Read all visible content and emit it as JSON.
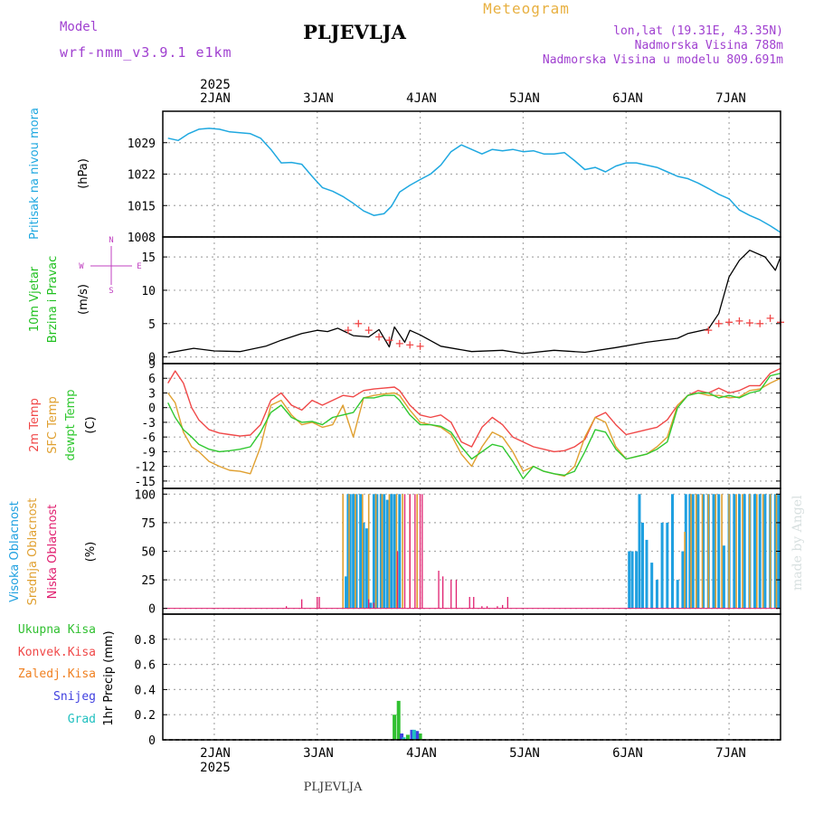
{
  "header": {
    "model_label": "Model",
    "model_name": "wrf-nmm_v3.9.1 e1km",
    "station": "PLJEVLJA",
    "product": "Meteogram",
    "coords": "lon,lat (19.31E, 43.35N)",
    "elevation": "Nadmorska Visina 788m",
    "model_elevation": "Nadmorska Visina u modelu 809.691m",
    "footer_station": "PLJEVLJA",
    "watermark": "made by Angel"
  },
  "colors": {
    "pressure": "#1fa8e0",
    "temp2m": "#f04848",
    "sfc_temp": "#e0a030",
    "dewpoint": "#30c830",
    "high_cloud": "#1fa0e0",
    "mid_cloud": "#e0a030",
    "low_cloud": "#e02070",
    "total_precip": "#30c030",
    "conv_precip": "#f04848",
    "frozen": "#f08020",
    "snow": "#4040e0",
    "graupel": "#20c0c0",
    "model_text": "#a040d0",
    "product_text": "#e8b040",
    "wind_label": "#20c020",
    "wind_compass": "#c040c0"
  },
  "chart_data": [
    {
      "panel": "pressure",
      "type": "line",
      "ylabel_side": "Pritisak na nivou mora",
      "ylabel_unit": "(hPa)",
      "ylim": [
        1008,
        1036
      ],
      "yticks": [
        1008,
        1015,
        1022,
        1029
      ],
      "x_top_year": "2025",
      "x_ticks": [
        "2JAN",
        "3JAN",
        "4JAN",
        "5JAN",
        "6JAN",
        "7JAN"
      ],
      "x": [
        1.55,
        1.65,
        1.75,
        1.85,
        1.95,
        2.05,
        2.15,
        2.25,
        2.35,
        2.45,
        2.55,
        2.65,
        2.75,
        2.85,
        2.95,
        3.05,
        3.15,
        3.25,
        3.35,
        3.45,
        3.55,
        3.65,
        3.72,
        3.8,
        3.9,
        4.0,
        4.1,
        4.2,
        4.3,
        4.4,
        4.5,
        4.6,
        4.7,
        4.8,
        4.9,
        5.0,
        5.1,
        5.2,
        5.3,
        5.4,
        5.5,
        5.6,
        5.7,
        5.8,
        5.9,
        6.0,
        6.1,
        6.2,
        6.3,
        6.4,
        6.5,
        6.6,
        6.7,
        6.8,
        6.9,
        7.0,
        7.1,
        7.2,
        7.3,
        7.4,
        7.5
      ],
      "values": [
        1030.0,
        1029.5,
        1031.0,
        1032.0,
        1032.2,
        1032.0,
        1031.4,
        1031.2,
        1031.0,
        1030.0,
        1027.5,
        1024.5,
        1024.6,
        1024.2,
        1021.5,
        1019.0,
        1018.2,
        1017.0,
        1015.5,
        1013.8,
        1012.8,
        1013.2,
        1014.8,
        1018.0,
        1019.5,
        1020.8,
        1022.0,
        1024.0,
        1027.0,
        1028.5,
        1027.5,
        1026.5,
        1027.5,
        1027.2,
        1027.5,
        1027.0,
        1027.2,
        1026.5,
        1026.5,
        1026.8,
        1025.0,
        1023.0,
        1023.5,
        1022.5,
        1023.8,
        1024.5,
        1024.5,
        1024.0,
        1023.5,
        1022.5,
        1021.5,
        1021.0,
        1020.0,
        1018.8,
        1017.5,
        1016.5,
        1014.0,
        1012.8,
        1011.8,
        1010.5,
        1009.0
      ]
    },
    {
      "panel": "wind",
      "type": "line",
      "ylabel_side": [
        "10m Vjetar",
        "Brzina i Pravac"
      ],
      "ylabel_unit": "(m/s)",
      "compass": [
        "N",
        "E",
        "S",
        "W"
      ],
      "ylim": [
        -1,
        18
      ],
      "yticks": [
        0,
        5,
        10,
        15
      ],
      "speed_x": [
        1.55,
        1.8,
        2.0,
        2.25,
        2.5,
        2.65,
        2.85,
        3.0,
        3.1,
        3.2,
        3.35,
        3.5,
        3.6,
        3.7,
        3.75,
        3.85,
        3.9,
        4.0,
        4.2,
        4.5,
        4.8,
        5.0,
        5.3,
        5.6,
        5.9,
        6.2,
        6.5,
        6.6,
        6.8,
        6.9,
        7.0,
        7.1,
        7.2,
        7.35,
        7.45,
        7.5
      ],
      "speed_values": [
        0.6,
        1.3,
        0.9,
        0.8,
        1.6,
        2.5,
        3.5,
        4.0,
        3.8,
        4.3,
        3.2,
        3.0,
        4.1,
        1.5,
        4.5,
        2.2,
        4.0,
        3.3,
        1.6,
        0.8,
        1.0,
        0.5,
        1.0,
        0.7,
        1.4,
        2.2,
        2.8,
        3.5,
        4.2,
        6.5,
        12.0,
        14.5,
        16.0,
        15.0,
        13.0,
        15.0
      ],
      "gust_x": [
        3.3,
        3.4,
        3.5,
        3.6,
        3.7,
        3.8,
        3.9,
        4.0,
        6.8,
        6.9,
        7.0,
        7.1,
        7.2,
        7.3,
        7.4,
        7.5
      ],
      "gust_values": [
        4.0,
        5.0,
        4.0,
        3.0,
        2.5,
        2.0,
        1.8,
        1.6,
        4.0,
        5.0,
        5.2,
        5.4,
        5.1,
        5.0,
        5.8,
        5.2
      ]
    },
    {
      "panel": "temperature",
      "type": "line",
      "ylabel_side": [
        "2m Temp",
        "SFC Temp",
        "dewpt Temp"
      ],
      "ylabel_unit": "(C)",
      "ylim": [
        -16.5,
        9
      ],
      "yticks": [
        -15,
        -12,
        -9,
        -6,
        -3,
        0,
        3,
        6,
        9
      ],
      "x": [
        1.55,
        1.62,
        1.7,
        1.78,
        1.85,
        1.95,
        2.05,
        2.15,
        2.25,
        2.35,
        2.45,
        2.55,
        2.65,
        2.75,
        2.85,
        2.95,
        3.05,
        3.15,
        3.25,
        3.35,
        3.45,
        3.55,
        3.65,
        3.75,
        3.8,
        3.85,
        3.9,
        4.0,
        4.1,
        4.2,
        4.3,
        4.4,
        4.5,
        4.6,
        4.7,
        4.8,
        4.9,
        5.0,
        5.1,
        5.2,
        5.3,
        5.4,
        5.5,
        5.6,
        5.7,
        5.8,
        5.9,
        6.0,
        6.1,
        6.2,
        6.3,
        6.4,
        6.5,
        6.6,
        6.7,
        6.8,
        6.9,
        7.0,
        7.1,
        7.2,
        7.3,
        7.4,
        7.5
      ],
      "series": [
        {
          "name": "2m Temp",
          "values": [
            5.0,
            7.5,
            5.0,
            0.0,
            -2.5,
            -4.5,
            -5.2,
            -5.5,
            -5.8,
            -5.6,
            -3.5,
            1.5,
            3.0,
            0.5,
            -0.5,
            1.5,
            0.5,
            1.5,
            2.5,
            2.2,
            3.5,
            3.8,
            4.0,
            4.2,
            3.5,
            2.0,
            0.5,
            -1.5,
            -2.0,
            -1.5,
            -3.0,
            -7.0,
            -8.0,
            -4.0,
            -2.0,
            -3.5,
            -6.0,
            -7.0,
            -8.0,
            -8.5,
            -9.0,
            -8.8,
            -8.0,
            -6.5,
            -2.0,
            -1.0,
            -3.5,
            -5.5,
            -5.0,
            -4.5,
            -4.0,
            -2.5,
            0.5,
            2.5,
            3.5,
            3.0,
            4.0,
            3.0,
            3.5,
            4.5,
            4.5,
            7.0,
            8.0
          ]
        },
        {
          "name": "SFC Temp",
          "values": [
            3.0,
            1.0,
            -5.0,
            -8.0,
            -9.0,
            -11.0,
            -12.0,
            -12.8,
            -13.0,
            -13.5,
            -8.0,
            0.5,
            1.5,
            -1.5,
            -3.5,
            -3.0,
            -4.0,
            -3.5,
            0.5,
            -6.0,
            2.0,
            2.5,
            2.8,
            3.0,
            2.5,
            1.0,
            -0.5,
            -3.0,
            -3.5,
            -4.0,
            -5.5,
            -9.5,
            -12.0,
            -8.0,
            -5.0,
            -6.0,
            -9.0,
            -13.0,
            -12.0,
            -13.0,
            -13.5,
            -14.0,
            -12.0,
            -6.0,
            -2.0,
            -3.0,
            -8.0,
            -10.5,
            -10.0,
            -9.5,
            -8.0,
            -6.0,
            0.5,
            2.5,
            3.0,
            2.5,
            2.5,
            2.0,
            2.2,
            3.5,
            3.8,
            5.0,
            6.0
          ]
        },
        {
          "name": "dewpt Temp",
          "values": [
            1.0,
            -2.0,
            -4.5,
            -6.0,
            -7.5,
            -8.5,
            -9.0,
            -8.8,
            -8.5,
            -8.0,
            -5.0,
            -1.0,
            0.5,
            -2.0,
            -3.0,
            -2.8,
            -3.5,
            -2.0,
            -1.5,
            -1.0,
            2.0,
            2.0,
            2.5,
            2.5,
            1.5,
            0.0,
            -1.5,
            -3.5,
            -3.5,
            -3.8,
            -5.0,
            -8.0,
            -10.5,
            -9.0,
            -7.5,
            -8.0,
            -11.0,
            -14.5,
            -12.0,
            -13.0,
            -13.5,
            -13.8,
            -13.0,
            -9.0,
            -4.5,
            -5.0,
            -8.5,
            -10.5,
            -10.0,
            -9.5,
            -8.5,
            -7.0,
            0.0,
            2.5,
            3.0,
            3.0,
            2.0,
            2.5,
            2.0,
            3.0,
            3.5,
            6.5,
            7.0
          ]
        }
      ]
    },
    {
      "panel": "cloud",
      "type": "bar",
      "ylabel_side": [
        "Visoka Oblacnost",
        "Srednja Oblacnost",
        "Niska Oblacnost"
      ],
      "ylabel_unit": "(%)",
      "ylim": [
        -5,
        105
      ],
      "yticks": [
        0,
        25,
        50,
        75,
        100
      ],
      "series": [
        {
          "name": "Visoka Oblacnost",
          "x": [
            3.28,
            3.3,
            3.32,
            3.35,
            3.38,
            3.42,
            3.45,
            3.48,
            3.52,
            3.55,
            3.58,
            3.62,
            3.65,
            3.68,
            3.72,
            3.75,
            3.8,
            6.03,
            6.06,
            6.1,
            6.13,
            6.16,
            6.2,
            6.25,
            6.3,
            6.35,
            6.4,
            6.45,
            6.5,
            6.55,
            6.58,
            6.62,
            6.65,
            6.7,
            6.75,
            6.8,
            6.85,
            6.9,
            6.95,
            7.0,
            7.05,
            7.1,
            7.15,
            7.2,
            7.25,
            7.3,
            7.35,
            7.4,
            7.45,
            7.48
          ],
          "values": [
            28,
            100,
            100,
            100,
            100,
            100,
            75,
            70,
            5,
            100,
            100,
            100,
            100,
            95,
            100,
            100,
            100,
            50,
            50,
            50,
            100,
            75,
            60,
            40,
            25,
            75,
            75,
            100,
            25,
            50,
            100,
            100,
            100,
            100,
            100,
            100,
            100,
            100,
            55,
            100,
            100,
            100,
            100,
            100,
            100,
            100,
            100,
            100,
            100,
            100
          ]
        },
        {
          "name": "Srednja Oblacnost",
          "x": [
            3.25,
            3.31,
            3.37,
            3.44,
            3.5,
            3.57,
            3.63,
            3.7,
            3.77,
            3.83,
            3.9,
            3.97,
            6.57,
            6.63,
            6.68,
            6.74,
            6.8,
            6.87,
            6.93,
            7.0,
            7.07,
            7.13,
            7.2,
            7.27,
            7.33,
            7.4,
            7.46
          ],
          "values": [
            100,
            100,
            100,
            100,
            100,
            100,
            100,
            100,
            100,
            100,
            100,
            100,
            67,
            100,
            100,
            100,
            100,
            100,
            100,
            100,
            100,
            100,
            100,
            100,
            100,
            100,
            100
          ]
        },
        {
          "name": "Niska Oblacnost",
          "x": [
            2.7,
            2.85,
            3.0,
            3.02,
            3.5,
            3.55,
            3.78,
            3.85,
            3.9,
            3.95,
            4.0,
            4.02,
            4.18,
            4.22,
            4.3,
            4.35,
            4.48,
            4.52,
            4.6,
            4.65,
            4.75,
            4.8,
            4.85
          ],
          "values": [
            2,
            8,
            10,
            10,
            8,
            5,
            50,
            100,
            100,
            100,
            100,
            100,
            33,
            28,
            25,
            25,
            10,
            10,
            2,
            2,
            2,
            3,
            10
          ]
        }
      ]
    },
    {
      "panel": "precip",
      "type": "bar",
      "ylabel_side": "1hr Precip (mm)",
      "legend": [
        "Ukupna Kisa",
        "Konvek.Kisa",
        "Zaledj.Kisa",
        "Snijeg",
        "Grad"
      ],
      "ylim": [
        0,
        1.0
      ],
      "yticks": [
        0,
        0.2,
        0.4,
        0.6,
        0.8
      ],
      "x_ticks": [
        "2JAN",
        "3JAN",
        "4JAN",
        "5JAN",
        "6JAN",
        "7JAN"
      ],
      "x_bottom_year": "2025",
      "series": [
        {
          "name": "Ukupna Kisa",
          "x": [
            3.75,
            3.79,
            3.88,
            3.96,
            4.0
          ],
          "values": [
            0.2,
            0.31,
            0.04,
            0.07,
            0.05
          ]
        },
        {
          "name": "Snijeg",
          "x": [
            3.82,
            3.92,
            3.97
          ],
          "values": [
            0.05,
            0.08,
            0.07
          ]
        },
        {
          "name": "Grad",
          "x": [
            3.84,
            3.94
          ],
          "values": [
            0.02,
            0.08
          ]
        }
      ]
    }
  ]
}
